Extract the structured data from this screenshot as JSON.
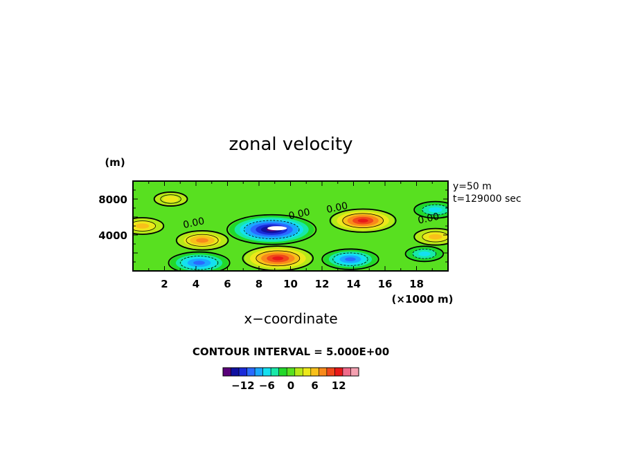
{
  "chart_data": {
    "type": "heatmap",
    "title": "zonal velocity",
    "xlabel": "x−coordinate",
    "x_units": "(×1000 m)",
    "y_units": "(m)",
    "info_lines": [
      "y=50  m",
      "t=129000 sec"
    ],
    "xlim": [
      0,
      20
    ],
    "ylim": [
      0,
      10000
    ],
    "x_ticks": [
      2,
      4,
      6,
      8,
      10,
      12,
      14,
      16,
      18
    ],
    "y_ticks": [
      4000,
      8000
    ],
    "y_tick_labels": [
      "4000",
      "8000"
    ],
    "contour_interval_text": "CONTOUR INTERVAL = 5.000E+00",
    "contour_labels": [
      "0.00",
      "0.00",
      "0.00",
      "0.00"
    ],
    "colorbar": {
      "ticks": [
        -12,
        -6,
        0,
        6,
        12
      ],
      "tick_labels": [
        "−12",
        "−6",
        "0",
        "6",
        "12"
      ],
      "colors": [
        "#5a007a",
        "#1010a0",
        "#1a2ad8",
        "#2a6aff",
        "#1aa8ff",
        "#14e0f0",
        "#18e8a8",
        "#22d82a",
        "#58e020",
        "#b8e818",
        "#ece81a",
        "#f8c01a",
        "#f88a1a",
        "#f0481a",
        "#e81818",
        "#f06a8a",
        "#f4a0b0"
      ]
    },
    "features": [
      {
        "x": 8.8,
        "y": 4600,
        "value": -16
      },
      {
        "x": 4.2,
        "y": 900,
        "value": -10
      },
      {
        "x": 13.8,
        "y": 1300,
        "value": -9
      },
      {
        "x": 14.6,
        "y": 5600,
        "value": 11
      },
      {
        "x": 9.2,
        "y": 1400,
        "value": 12
      },
      {
        "x": 4.4,
        "y": 3400,
        "value": 8
      },
      {
        "x": 0.6,
        "y": 5000,
        "value": 6
      },
      {
        "x": 19.2,
        "y": 3800,
        "value": 6
      },
      {
        "x": 19.2,
        "y": 6800,
        "value": -6
      },
      {
        "x": 2.4,
        "y": 8000,
        "value": 4
      },
      {
        "x": 18.5,
        "y": 1900,
        "value": -5
      }
    ]
  }
}
